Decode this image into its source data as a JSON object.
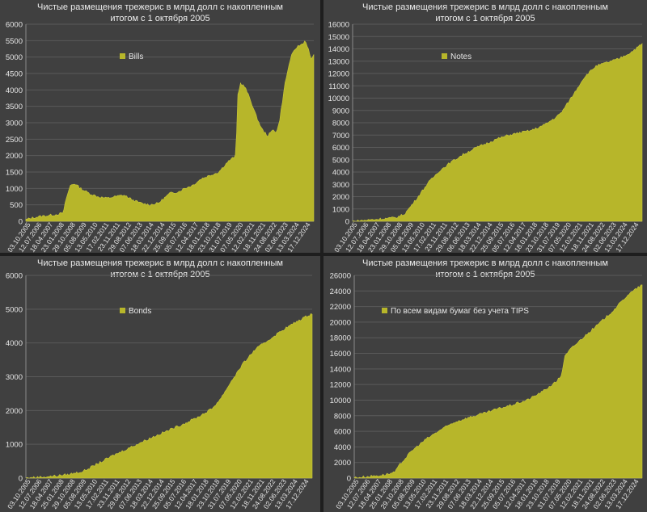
{
  "colors": {
    "area": "#b7b62a",
    "grid": "#5a5a5a",
    "text": "#e6e6e6"
  },
  "chart_data": [
    {
      "type": "area",
      "title_line1": "Чистые размещения трежерис в млрд долл с накопленным",
      "title_line2": "итогом с 1 октября 2005",
      "legend": "Bills",
      "legend_placement": "top-left",
      "ylim": [
        0,
        6000
      ],
      "yticks": [
        0,
        500,
        1000,
        1500,
        2000,
        2500,
        3000,
        3500,
        4000,
        4500,
        5000,
        5500,
        6000
      ],
      "xticks": [
        "03.10.2005",
        "12.07.2006",
        "18.04.2007",
        "23.01.2008",
        "29.10.2008",
        "05.08.2009",
        "13.05.2010",
        "17.02.2011",
        "23.11.2011",
        "29.08.2012",
        "07.06.2013",
        "18.03.2014",
        "22.12.2014",
        "25.09.2015",
        "05.07.2016",
        "12.04.2017",
        "18.01.2018",
        "23.10.2018",
        "31.07.2019",
        "07.05.2020",
        "12.02.2021",
        "18.11.2021",
        "24.08.2022",
        "02.06.2023",
        "13.03.2024",
        "17.12.2024"
      ],
      "x": [
        0,
        0.02,
        0.05,
        0.1,
        0.13,
        0.14,
        0.155,
        0.17,
        0.19,
        0.22,
        0.25,
        0.28,
        0.31,
        0.34,
        0.37,
        0.4,
        0.43,
        0.46,
        0.5,
        0.53,
        0.55,
        0.58,
        0.61,
        0.64,
        0.67,
        0.7,
        0.73,
        0.735,
        0.745,
        0.76,
        0.78,
        0.8,
        0.82,
        0.84,
        0.86,
        0.87,
        0.88,
        0.89,
        0.9,
        0.92,
        0.94,
        0.96,
        0.97,
        0.98,
        0.99,
        1.0
      ],
      "values": [
        50,
        100,
        150,
        200,
        250,
        700,
        1100,
        1150,
        1000,
        850,
        750,
        700,
        750,
        800,
        650,
        550,
        500,
        550,
        850,
        900,
        1000,
        1100,
        1300,
        1400,
        1500,
        1800,
        2000,
        3800,
        4200,
        4100,
        3700,
        3200,
        2800,
        2600,
        2800,
        2700,
        3000,
        3600,
        4200,
        5000,
        5300,
        5400,
        5500,
        5300,
        4900,
        5100
      ],
      "xlim": [
        0,
        1
      ]
    },
    {
      "type": "area",
      "title_line1": "Чистые размещения трежерис в млрд долл с накопленным",
      "title_line2": "итогом с 1 октября 2005",
      "legend": "Notes",
      "legend_placement": "top-left",
      "ylim": [
        0,
        16000
      ],
      "yticks": [
        0,
        1000,
        2000,
        3000,
        4000,
        5000,
        6000,
        7000,
        8000,
        9000,
        10000,
        11000,
        12000,
        13000,
        14000,
        15000,
        16000
      ],
      "xticks": [
        "03.10.2005",
        "12.07.2006",
        "18.04.2007",
        "23.01.2008",
        "29.10.2008",
        "05.08.2009",
        "13.05.2010",
        "17.02.2011",
        "23.11.2011",
        "29.08.2012",
        "06.06.2013",
        "18.03.2014",
        "22.12.2014",
        "25.09.2015",
        "05.07.2016",
        "12.04.2017",
        "18.01.2018",
        "23.10.2018",
        "31.07.2019",
        "07.05.2020",
        "12.02.2021",
        "18.11.2021",
        "24.08.2022",
        "02.06.2023",
        "13.03.2024",
        "17.12.2024"
      ],
      "x": [
        0,
        0.05,
        0.1,
        0.15,
        0.18,
        0.22,
        0.26,
        0.3,
        0.34,
        0.38,
        0.42,
        0.46,
        0.5,
        0.54,
        0.58,
        0.62,
        0.66,
        0.7,
        0.72,
        0.76,
        0.8,
        0.84,
        0.88,
        0.92,
        0.96,
        1.0
      ],
      "values": [
        0,
        100,
        200,
        300,
        600,
        1800,
        3100,
        4100,
        4800,
        5400,
        5900,
        6300,
        6700,
        7000,
        7200,
        7400,
        7800,
        8400,
        8800,
        10200,
        11700,
        12600,
        12900,
        13200,
        13700,
        14400
      ],
      "xlim": [
        0,
        1
      ]
    },
    {
      "type": "area",
      "title_line1": "Чистые размещения трежерис в млрд долл с накопленным",
      "title_line2": "итогом с 1 октября 2005",
      "legend": "Bonds",
      "legend_placement": "top-left",
      "ylim": [
        0,
        6000
      ],
      "yticks": [
        0,
        1000,
        2000,
        3000,
        4000,
        5000,
        6000
      ],
      "xticks": [
        "03.10.2005",
        "12.07.2006",
        "18.04.2007",
        "25.01.2008",
        "29.10.2008",
        "05.08.2009",
        "13.05.2010",
        "17.02.2011",
        "23.11.2011",
        "29.08.2012",
        "07.06.2013",
        "18.03.2014",
        "22.12.2014",
        "25.09.2015",
        "05.07.2016",
        "12.04.2017",
        "18.01.2018",
        "23.10.2018",
        "31.07.2019",
        "07.05.2020",
        "12.02.2021",
        "18.11.2021",
        "24.08.2022",
        "02.06.2023",
        "13.03.2024",
        "17.12.2024"
      ],
      "x": [
        0,
        0.05,
        0.1,
        0.15,
        0.2,
        0.25,
        0.3,
        0.35,
        0.4,
        0.45,
        0.5,
        0.55,
        0.6,
        0.65,
        0.68,
        0.72,
        0.76,
        0.8,
        0.85,
        0.9,
        0.95,
        1.0
      ],
      "values": [
        0,
        30,
        60,
        110,
        200,
        420,
        650,
        850,
        1050,
        1240,
        1420,
        1600,
        1800,
        2050,
        2350,
        2900,
        3400,
        3800,
        4100,
        4400,
        4650,
        4880
      ],
      "xlim": [
        0,
        1
      ]
    },
    {
      "type": "area",
      "title_line1": "Чистые размещения трежерис в млрд долл с накопленным",
      "title_line2": "итогом с 1 октября 2005",
      "legend": "По всем видам бумаг без учета TIPS",
      "legend_placement": "top-left",
      "ylim": [
        0,
        26000
      ],
      "yticks": [
        0,
        2000,
        4000,
        6000,
        8000,
        10000,
        12000,
        14000,
        16000,
        18000,
        20000,
        22000,
        24000,
        26000
      ],
      "xticks": [
        "03.10.2005",
        "12.07.2006",
        "18.04.2007",
        "25.01.2008",
        "29.10.2008",
        "05.08.2009",
        "13.05.2010",
        "17.02.2011",
        "23.11.2011",
        "29.08.2012",
        "07.06.2013",
        "18.03.2014",
        "22.12.2014",
        "25.09.2015",
        "05.07.2016",
        "12.04.2017",
        "18.01.2018",
        "23.10.2018",
        "31.07.2019",
        "07.05.2020",
        "12.02.2021",
        "18.11.2021",
        "24.08.2022",
        "02.06.2023",
        "13.03.2024",
        "17.12.2024"
      ],
      "x": [
        0,
        0.05,
        0.1,
        0.14,
        0.16,
        0.2,
        0.25,
        0.3,
        0.35,
        0.4,
        0.45,
        0.5,
        0.55,
        0.6,
        0.65,
        0.7,
        0.72,
        0.73,
        0.75,
        0.8,
        0.85,
        0.9,
        0.95,
        1.0
      ],
      "values": [
        50,
        200,
        400,
        700,
        1800,
        3500,
        5000,
        6200,
        7200,
        7800,
        8300,
        8900,
        9400,
        10000,
        11000,
        12300,
        13200,
        15500,
        16500,
        18200,
        19800,
        21500,
        23500,
        24800
      ],
      "xlim": [
        0,
        1
      ]
    }
  ]
}
